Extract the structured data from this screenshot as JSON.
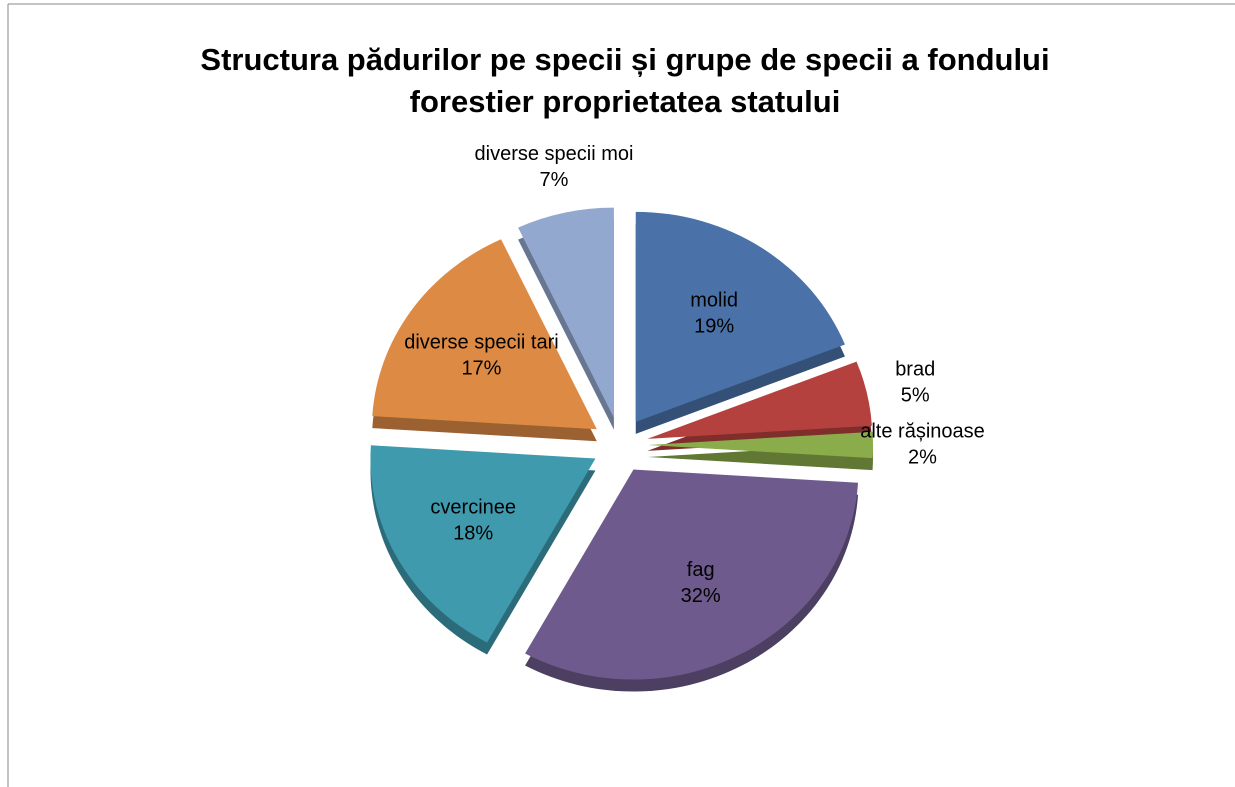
{
  "chart_data": {
    "type": "pie",
    "title": [
      "Structura pădurilor pe specii și grupe de specii a fondului",
      "forestier proprietatea statului"
    ],
    "categories": [
      "molid",
      "brad",
      "alte rășinoase",
      "fag",
      "cvercinee",
      "diverse specii tari",
      "diverse specii moi"
    ],
    "values": [
      19,
      5,
      2,
      32,
      18,
      17,
      7
    ],
    "value_labels": [
      "19%",
      "5%",
      "2%",
      "32%",
      "18%",
      "17%",
      "7%"
    ],
    "colors": [
      "#4a72a8",
      "#b5413f",
      "#8aac4a",
      "#6e5a8c",
      "#3f9aae",
      "#dd8a45",
      "#93a8cf"
    ]
  }
}
